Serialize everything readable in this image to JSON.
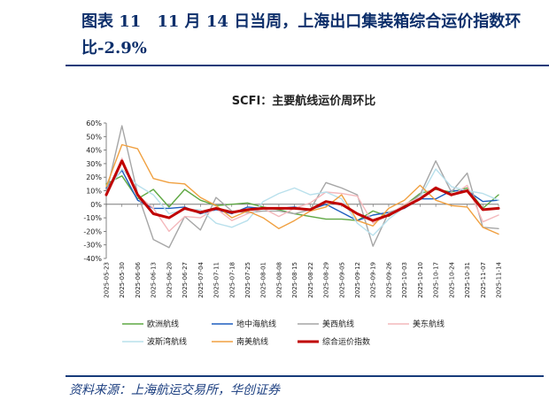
{
  "figure": {
    "title": "图表 11　11 月 14 日当周，上海出口集装箱综合运价指数环比-2.9%",
    "source": "资料来源：上海航运交易所，华创证券"
  },
  "chart_data": {
    "type": "line",
    "title": "SCFI：主要航线运价周环比",
    "xlabel": "",
    "ylabel": "",
    "ylim": [
      -40,
      60
    ],
    "yticks": [
      "60%",
      "50%",
      "40%",
      "30%",
      "20%",
      "10%",
      "0%",
      "-10%",
      "-20%",
      "-30%",
      "-40%"
    ],
    "grid": false,
    "legend": "bottom",
    "x": [
      "2025-05-23",
      "2025-05-30",
      "2025-06-06",
      "2025-06-13",
      "2025-06-20",
      "2025-06-27",
      "2025-07-04",
      "2025-07-11",
      "2025-07-18",
      "2025-07-25",
      "2025-08-01",
      "2025-08-08",
      "2025-08-15",
      "2025-08-22",
      "2025-08-29",
      "2025-09-05",
      "2025-09-12",
      "2025-09-19",
      "2025-09-26",
      "2025-10-03",
      "2025-10-10",
      "2025-10-17",
      "2025-10-24",
      "2025-10-31",
      "2025-11-07",
      "2025-11-14"
    ],
    "xtick_labels": [
      "2025-05-23",
      "2025-05-30",
      "2025-06-06",
      "2025-06-13",
      "2025-06-20",
      "2025-06-27",
      "2025-07-04",
      "2025-07-11",
      "2025-07-18",
      "2025-07-25",
      "2025-08-01",
      "2025-08-08",
      "2025-08-15",
      "2025-08-22",
      "2025-08-29",
      "2025-09-05",
      "2025-09-12",
      "2025-09-19",
      "2025-09-26",
      "2025-10-03",
      "2025-10-10",
      "2025-10-17",
      "2025-10-24",
      "2025-10-31",
      "2025-11-07",
      "2025-11-14"
    ],
    "series": [
      {
        "name": "欧洲航线",
        "color": "#5fa843",
        "width": 1.4,
        "values": [
          15,
          21,
          4,
          11,
          -2,
          11,
          3,
          -1,
          0,
          1,
          -2,
          -4,
          -7,
          -9,
          -11,
          -11,
          -12,
          -5,
          -9,
          -1,
          8,
          11,
          9,
          12,
          -3,
          7
        ]
      },
      {
        "name": "地中海航线",
        "color": "#1f5fbf",
        "width": 1.4,
        "values": [
          12,
          25,
          3,
          -3,
          -3,
          -2,
          -7,
          -4,
          -7,
          -2,
          -3,
          -3,
          -2,
          -4,
          0,
          -6,
          -12,
          -8,
          -6,
          -3,
          4,
          4,
          10,
          10,
          2,
          3
        ]
      },
      {
        "name": "美西航线",
        "color": "#a6a6a6",
        "width": 1.4,
        "values": [
          8,
          58,
          8,
          -26,
          -32,
          -9,
          -19,
          5,
          -5,
          -6,
          -5,
          -5,
          -7,
          -4,
          16,
          12,
          7,
          -31,
          -6,
          -2,
          7,
          32,
          9,
          23,
          -17,
          -18
        ]
      },
      {
        "name": "美东航线",
        "color": "#f4b8bc",
        "width": 1.4,
        "values": [
          8,
          34,
          7,
          -3,
          -20,
          -9,
          -10,
          -3,
          -12,
          -7,
          -3,
          -9,
          -3,
          1,
          9,
          8,
          6,
          -14,
          -8,
          0,
          5,
          13,
          6,
          14,
          -13,
          -8
        ]
      },
      {
        "name": "波斯湾航线",
        "color": "#b9e0ec",
        "width": 1.4,
        "values": [
          9,
          26,
          14,
          7,
          -7,
          -4,
          -4,
          -14,
          -17,
          -12,
          2,
          8,
          12,
          7,
          9,
          4,
          -14,
          -23,
          -11,
          -2,
          5,
          26,
          13,
          10,
          8,
          3
        ]
      },
      {
        "name": "南美航线",
        "color": "#f0a040",
        "width": 1.4,
        "values": [
          13,
          44,
          41,
          19,
          16,
          15,
          5,
          -1,
          -10,
          -5,
          -10,
          -18,
          -12,
          -5,
          -2,
          7,
          -12,
          -16,
          -3,
          3,
          14,
          3,
          -1,
          -2,
          -17,
          -22
        ]
      },
      {
        "name": "综合运价指数",
        "color": "#c00000",
        "width": 3,
        "values": [
          7,
          32,
          7,
          -7,
          -10,
          -3,
          -6,
          -3,
          -6,
          -4,
          -3,
          -3,
          -3,
          -4,
          2,
          0,
          -7,
          -12,
          -8,
          -2,
          4,
          12,
          7,
          10,
          -4,
          -3
        ]
      }
    ]
  }
}
